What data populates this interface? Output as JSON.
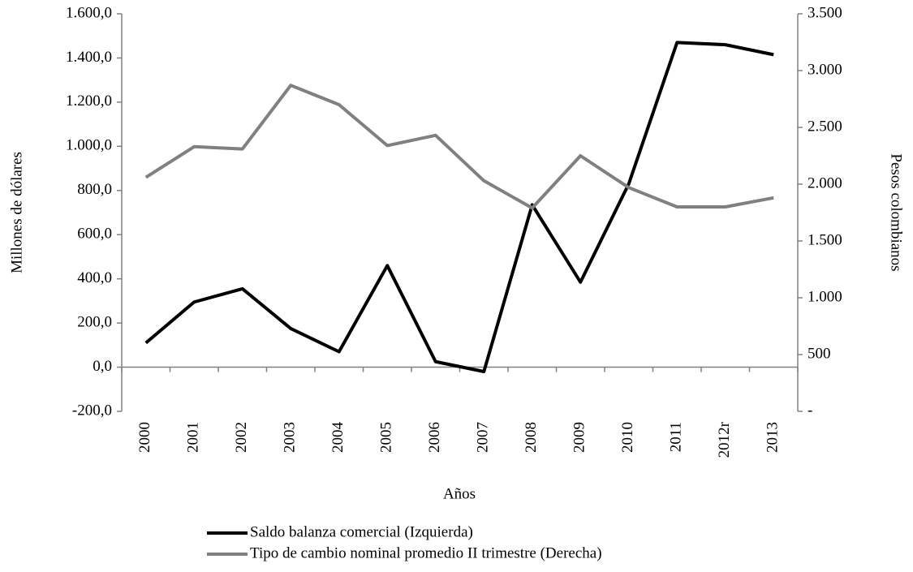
{
  "chart_data": {
    "type": "line",
    "categories": [
      "2000",
      "2001",
      "2002",
      "2003",
      "2004",
      "2005",
      "2006",
      "2007",
      "2008",
      "2009",
      "2010",
      "2011",
      "2012r",
      "2013"
    ],
    "series": [
      {
        "name": "Saldo balanza comercial (Izquierda)",
        "color": "#000000",
        "axis": "y",
        "values": [
          110,
          295,
          355,
          175,
          70,
          460,
          25,
          -20,
          735,
          385,
          830,
          1470,
          1460,
          1415
        ]
      },
      {
        "name": "Tipo de cambio nominal promedio II trimestre (Derecha)",
        "color": "#808080",
        "axis": "y2",
        "values": [
          2060,
          2330,
          2310,
          2870,
          2700,
          2340,
          2430,
          2030,
          1790,
          2250,
          1970,
          1800,
          1800,
          1880
        ]
      }
    ],
    "ylabel": "Millones de dólares",
    "y2label": "Pesos colombianos",
    "xlabel": "Años",
    "ylim": [
      -200,
      1600
    ],
    "yticks": [
      {
        "value": -200,
        "label": "-200,0"
      },
      {
        "value": 0,
        "label": "0,0"
      },
      {
        "value": 200,
        "label": "200,0"
      },
      {
        "value": 400,
        "label": "400,0"
      },
      {
        "value": 600,
        "label": "600,0"
      },
      {
        "value": 800,
        "label": "800,0"
      },
      {
        "value": 1000,
        "label": "1.000,0"
      },
      {
        "value": 1200,
        "label": "1.200,0"
      },
      {
        "value": 1400,
        "label": "1.400,0"
      },
      {
        "value": 1600,
        "label": "1.600,0"
      }
    ],
    "y2lim": [
      0,
      3500
    ],
    "y2ticks": [
      {
        "value": 0,
        "label": "-"
      },
      500,
      {
        "value": 1000,
        "label": "1.000"
      },
      {
        "value": 1500,
        "label": "1.500"
      },
      {
        "value": 2000,
        "label": "2.000"
      },
      {
        "value": 2500,
        "label": "2.500"
      },
      {
        "value": 3000,
        "label": "3.000"
      },
      {
        "value": 3500,
        "label": "3.500"
      }
    ],
    "legend": "bottom"
  }
}
